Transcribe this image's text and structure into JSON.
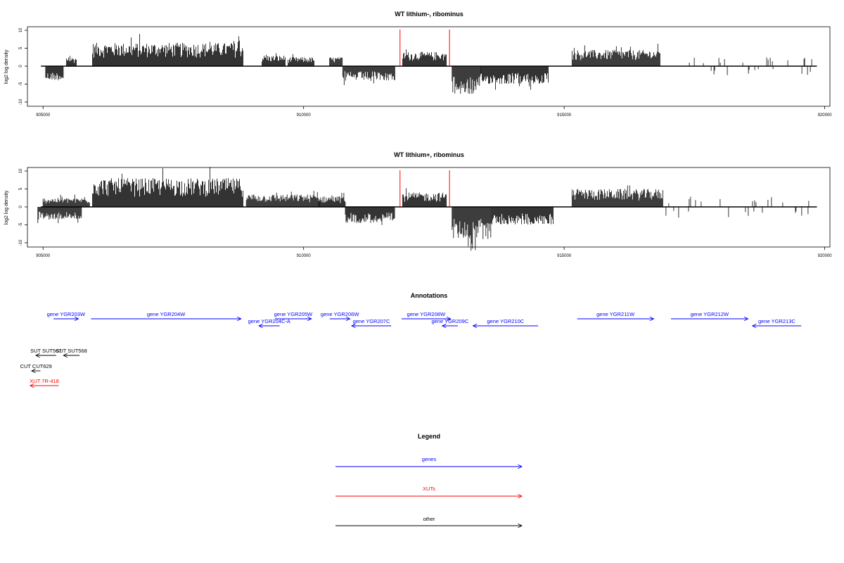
{
  "chart_data": [
    {
      "type": "bar",
      "title": "WT lithium-, ribominus",
      "ylabel": "log2 log density",
      "xlabel": "",
      "xlim": [
        904700,
        920100
      ],
      "ylim": [
        -10,
        10
      ],
      "xticks": [
        905000,
        910000,
        915000,
        920000
      ],
      "yticks": [
        10,
        5,
        0,
        -5,
        -10
      ],
      "markers": [
        911850,
        912800
      ],
      "regions": [
        {
          "start": 905050,
          "end": 905400,
          "sign": -1,
          "amp": 4
        },
        {
          "start": 905450,
          "end": 905650,
          "sign": 1,
          "amp": 2.5
        },
        {
          "start": 905950,
          "end": 908850,
          "sign": 1,
          "amp": 6.5
        },
        {
          "start": 909200,
          "end": 909650,
          "sign": 1,
          "amp": 3
        },
        {
          "start": 909700,
          "end": 910200,
          "sign": 1,
          "amp": 2.5
        },
        {
          "start": 910500,
          "end": 910750,
          "sign": 1,
          "amp": 2.5
        },
        {
          "start": 910750,
          "end": 911750,
          "sign": -1,
          "amp": 4
        },
        {
          "start": 911900,
          "end": 912750,
          "sign": 1,
          "amp": 4
        },
        {
          "start": 912850,
          "end": 913400,
          "sign": -1,
          "amp": 8
        },
        {
          "start": 913400,
          "end": 914700,
          "sign": -1,
          "amp": 5
        },
        {
          "start": 915150,
          "end": 916850,
          "sign": 1,
          "amp": 4.5
        },
        {
          "start": 917200,
          "end": 919800,
          "sign": 0,
          "amp": 2.5
        }
      ]
    },
    {
      "type": "bar",
      "title": "WT lithium+, ribominus",
      "ylabel": "log2 log density",
      "xlabel": "",
      "xlim": [
        904700,
        920100
      ],
      "ylim": [
        -10,
        10
      ],
      "xticks": [
        905000,
        910000,
        915000,
        920000
      ],
      "yticks": [
        10,
        5,
        0,
        -5,
        -10
      ],
      "markers": [
        911850,
        912800
      ],
      "regions": [
        {
          "start": 904900,
          "end": 905750,
          "sign": -1,
          "amp": 3.5
        },
        {
          "start": 905000,
          "end": 905900,
          "sign": 1,
          "amp": 2.5
        },
        {
          "start": 905950,
          "end": 908850,
          "sign": 1,
          "amp": 8
        },
        {
          "start": 908900,
          "end": 910300,
          "sign": 1,
          "amp": 3.5
        },
        {
          "start": 910300,
          "end": 910800,
          "sign": 1,
          "amp": 3
        },
        {
          "start": 910800,
          "end": 911750,
          "sign": -1,
          "amp": 4.5
        },
        {
          "start": 911900,
          "end": 912750,
          "sign": 1,
          "amp": 4
        },
        {
          "start": 912850,
          "end": 913600,
          "sign": -1,
          "amp": 9
        },
        {
          "start": 913600,
          "end": 914800,
          "sign": -1,
          "amp": 5
        },
        {
          "start": 915150,
          "end": 916900,
          "sign": 1,
          "amp": 5
        },
        {
          "start": 916900,
          "end": 919800,
          "sign": 0,
          "amp": 3
        }
      ]
    }
  ],
  "annotations_title": "Annotations",
  "annotations": [
    {
      "label": "gene YGR203W",
      "category": "gene",
      "start": 905200,
      "end": 905680,
      "strand": "+",
      "row": 0
    },
    {
      "label": "gene YGR204W",
      "category": "gene",
      "start": 905920,
      "end": 908800,
      "strand": "+",
      "row": 0
    },
    {
      "label": "gene YGR205W",
      "category": "gene",
      "start": 909450,
      "end": 910150,
      "strand": "+",
      "row": 0
    },
    {
      "label": "gene YGR204C-A",
      "category": "gene",
      "start": 909140,
      "end": 909540,
      "strand": "-",
      "row": 1
    },
    {
      "label": "gene YGR206W",
      "category": "gene",
      "start": 910500,
      "end": 910890,
      "strand": "+",
      "row": 0
    },
    {
      "label": "gene YGR207C",
      "category": "gene",
      "start": 910920,
      "end": 911680,
      "strand": "-",
      "row": 1
    },
    {
      "label": "gene YGR208W",
      "category": "gene",
      "start": 911880,
      "end": 912820,
      "strand": "+",
      "row": 0
    },
    {
      "label": "gene YGR209C",
      "category": "gene",
      "start": 912660,
      "end": 912960,
      "strand": "-",
      "row": 1
    },
    {
      "label": "gene YGR210C",
      "category": "gene",
      "start": 913250,
      "end": 914500,
      "strand": "-",
      "row": 1
    },
    {
      "label": "gene YGR211W",
      "category": "gene",
      "start": 915250,
      "end": 916720,
      "strand": "+",
      "row": 0
    },
    {
      "label": "gene YGR212W",
      "category": "gene",
      "start": 917050,
      "end": 918530,
      "strand": "+",
      "row": 0
    },
    {
      "label": "gene YGR213C",
      "category": "gene",
      "start": 918610,
      "end": 919550,
      "strand": "-",
      "row": 1
    },
    {
      "label": "SUT SUT567",
      "category": "other",
      "start": 904860,
      "end": 905250,
      "strand": "-",
      "row": 2
    },
    {
      "label": "SUT SUT568",
      "category": "other",
      "start": 905390,
      "end": 905700,
      "strand": "-",
      "row": 2
    },
    {
      "label": "CUT CUT629",
      "category": "other",
      "start": 904780,
      "end": 904950,
      "strand": "-",
      "row": 3
    },
    {
      "label": "XUT 7R-418",
      "category": "xut",
      "start": 904750,
      "end": 905300,
      "strand": "-",
      "row": 4
    }
  ],
  "legend": {
    "title": "Legend",
    "items": [
      {
        "label": "genes",
        "color": "#0000ff"
      },
      {
        "label": "XUTs",
        "color": "#ff0000"
      },
      {
        "label": "other",
        "color": "#000000"
      }
    ]
  },
  "colors": {
    "gene": "#0000ff",
    "xut": "#ff0000",
    "other": "#000000",
    "marker": "#ff0000",
    "data": "#000000"
  }
}
